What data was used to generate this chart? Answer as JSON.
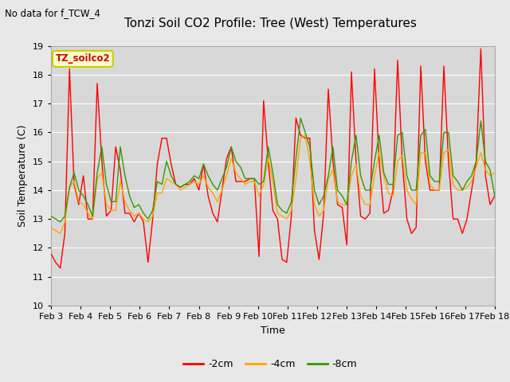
{
  "title": "Tonzi Soil CO2 Profile: Tree (West) Temperatures",
  "subtitle": "No data for f_TCW_4",
  "xlabel": "Time",
  "ylabel": "Soil Temperature (C)",
  "ylim": [
    10.0,
    19.0
  ],
  "yticks": [
    10.0,
    11.0,
    12.0,
    13.0,
    14.0,
    15.0,
    16.0,
    17.0,
    18.0,
    19.0
  ],
  "xtick_labels": [
    "Feb 3",
    "Feb 4",
    "Feb 5",
    "Feb 6",
    "Feb 7",
    "Feb 8",
    "Feb 9",
    "Feb 10",
    "Feb 11",
    "Feb 12",
    "Feb 13",
    "Feb 14",
    "Feb 15",
    "Feb 16",
    "Feb 17",
    "Feb 18"
  ],
  "legend_label": "TZ_soilco2",
  "series_labels": [
    "-2cm",
    "-4cm",
    "-8cm"
  ],
  "series_colors": [
    "#ff0000",
    "#ffa500",
    "#339900"
  ],
  "background_color": "#e8e8e8",
  "plot_bg_color": "#d8d8d8",
  "grid_color": "#ffffff",
  "t_2cm": [
    11.8,
    11.5,
    11.3,
    12.5,
    18.2,
    14.2,
    13.5,
    14.5,
    13.0,
    13.0,
    17.7,
    15.0,
    13.1,
    13.3,
    15.5,
    14.7,
    13.2,
    13.2,
    12.9,
    13.2,
    12.9,
    11.5,
    13.0,
    14.9,
    15.8,
    15.8,
    14.9,
    14.2,
    14.1,
    14.2,
    14.2,
    14.4,
    14.0,
    14.9,
    13.8,
    13.2,
    12.9,
    14.0,
    15.1,
    15.5,
    14.3,
    14.3,
    14.3,
    14.4,
    14.4,
    11.7,
    17.1,
    15.0,
    13.3,
    13.0,
    11.6,
    11.5,
    13.1,
    16.5,
    15.9,
    15.8,
    15.8,
    12.6,
    11.6,
    13.2,
    17.5,
    15.0,
    13.5,
    13.4,
    12.1,
    18.1,
    15.0,
    13.1,
    13.0,
    13.2,
    18.2,
    15.0,
    13.2,
    13.3,
    14.0,
    18.5,
    15.0,
    13.0,
    12.5,
    12.7,
    18.3,
    15.0,
    14.0,
    14.0,
    14.0,
    18.3,
    15.0,
    13.0,
    13.0,
    12.5,
    13.0,
    14.0,
    15.0,
    18.9,
    14.5,
    13.5,
    13.8
  ],
  "t_4cm": [
    12.7,
    12.6,
    12.5,
    12.9,
    14.1,
    14.3,
    13.6,
    13.5,
    13.2,
    13.0,
    14.4,
    14.6,
    13.5,
    13.3,
    13.3,
    14.3,
    13.6,
    13.3,
    13.1,
    13.2,
    13.0,
    12.9,
    13.1,
    13.9,
    13.9,
    14.4,
    14.3,
    14.2,
    14.0,
    14.1,
    14.2,
    14.3,
    14.2,
    14.5,
    14.1,
    13.9,
    13.6,
    14.0,
    14.5,
    15.1,
    14.6,
    14.4,
    14.2,
    14.3,
    14.3,
    13.8,
    14.2,
    15.1,
    14.3,
    13.2,
    13.1,
    13.0,
    13.3,
    14.4,
    15.8,
    15.9,
    15.0,
    13.5,
    13.1,
    13.3,
    14.4,
    14.7,
    13.6,
    13.5,
    13.5,
    14.5,
    14.9,
    13.8,
    13.5,
    13.5,
    14.5,
    15.3,
    14.5,
    13.9,
    13.8,
    15.0,
    15.2,
    14.0,
    13.7,
    13.5,
    15.3,
    15.3,
    14.2,
    14.0,
    14.0,
    15.3,
    15.4,
    14.2,
    14.0,
    14.0,
    14.1,
    14.3,
    14.8,
    15.3,
    14.7,
    14.5,
    14.6
  ],
  "t_8cm": [
    13.1,
    13.0,
    12.9,
    13.1,
    14.1,
    14.6,
    14.0,
    13.8,
    13.5,
    13.1,
    14.6,
    15.5,
    14.2,
    13.6,
    13.6,
    15.5,
    14.5,
    13.8,
    13.4,
    13.5,
    13.2,
    13.0,
    13.3,
    14.3,
    14.2,
    15.0,
    14.5,
    14.2,
    14.1,
    14.2,
    14.3,
    14.5,
    14.4,
    14.9,
    14.5,
    14.2,
    14.0,
    14.4,
    14.8,
    15.5,
    15.0,
    14.8,
    14.4,
    14.4,
    14.4,
    14.2,
    14.3,
    15.5,
    14.6,
    13.5,
    13.3,
    13.2,
    13.6,
    15.1,
    16.5,
    16.0,
    15.5,
    14.0,
    13.5,
    13.8,
    14.5,
    15.5,
    14.0,
    13.8,
    13.5,
    15.0,
    15.9,
    14.5,
    14.0,
    14.0,
    15.0,
    15.9,
    14.6,
    14.2,
    14.2,
    15.9,
    16.0,
    14.5,
    14.0,
    14.0,
    15.9,
    16.1,
    14.5,
    14.3,
    14.3,
    16.0,
    16.0,
    14.5,
    14.3,
    14.0,
    14.3,
    14.5,
    15.0,
    16.4,
    15.0,
    14.7,
    13.8
  ]
}
